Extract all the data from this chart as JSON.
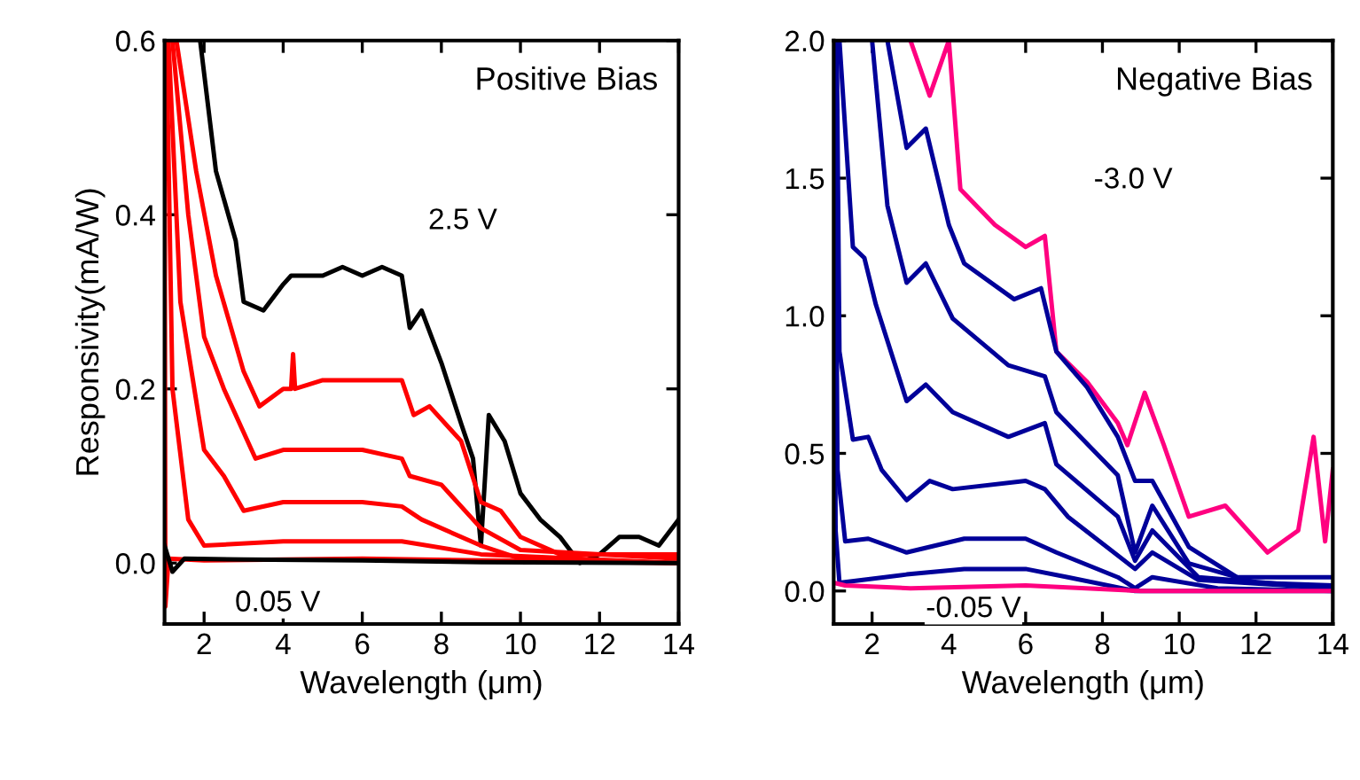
{
  "chart_data": [
    {
      "type": "line",
      "xlabel": "Wavelength (μm)",
      "ylabel": "Responsivity(mA/W)",
      "xlim": [
        1,
        14
      ],
      "ylim": [
        -0.07,
        0.6
      ],
      "xticks": [
        2,
        4,
        6,
        8,
        10,
        12,
        14
      ],
      "yticks": [
        {
          "value": 0,
          "label": "0.0"
        },
        {
          "value": 0.2,
          "label": "0.2"
        },
        {
          "value": 0.4,
          "label": "0.4"
        },
        {
          "value": 0.6,
          "label": "0.6"
        }
      ],
      "grid": false,
      "annotations": [
        "Positive Bias",
        "2.5 V",
        "0.05 V"
      ],
      "series": [
        {
          "color": "#000000",
          "x": [
            1.9,
            2.3,
            2.8,
            3.0,
            3.5,
            4.0,
            4.2,
            5.0,
            5.5,
            6.0,
            6.5,
            7.0,
            7.2,
            7.5,
            8.0,
            8.5,
            8.8,
            9.0,
            9.2,
            9.6,
            10.0,
            10.5,
            11.0,
            11.5,
            12.0,
            12.5,
            13.0,
            13.5,
            14.0
          ],
          "values": [
            0.6,
            0.45,
            0.37,
            0.3,
            0.29,
            0.32,
            0.33,
            0.33,
            0.34,
            0.33,
            0.34,
            0.33,
            0.27,
            0.29,
            0.23,
            0.16,
            0.12,
            0.02,
            0.17,
            0.14,
            0.08,
            0.05,
            0.03,
            0.0,
            0.01,
            0.03,
            0.03,
            0.02,
            0.05
          ]
        },
        {
          "color": "#ff0000",
          "x": [
            1.3,
            1.8,
            2.3,
            3.0,
            3.4,
            4.0,
            4.2,
            4.25,
            4.3,
            5.0,
            6.0,
            7.0,
            7.3,
            7.7,
            8.5,
            9.0,
            9.5,
            10.0,
            11.0,
            12.0,
            14.0
          ],
          "values": [
            0.6,
            0.45,
            0.33,
            0.22,
            0.18,
            0.2,
            0.2,
            0.24,
            0.2,
            0.21,
            0.21,
            0.21,
            0.17,
            0.18,
            0.14,
            0.07,
            0.06,
            0.03,
            0.01,
            0.01,
            0.01
          ]
        },
        {
          "color": "#ff0000",
          "x": [
            1.2,
            1.6,
            2.0,
            2.5,
            3.3,
            4.0,
            5.0,
            6.0,
            7.0,
            7.2,
            8.0,
            9.0,
            10.0,
            14.0
          ],
          "values": [
            0.6,
            0.4,
            0.26,
            0.2,
            0.12,
            0.13,
            0.13,
            0.13,
            0.12,
            0.1,
            0.09,
            0.04,
            0.015,
            0.005
          ]
        },
        {
          "color": "#ff0000",
          "x": [
            1.1,
            1.4,
            2.0,
            2.5,
            3.0,
            4.0,
            6.0,
            7.0,
            7.5,
            9.0,
            10.0,
            14.0
          ],
          "values": [
            0.6,
            0.3,
            0.13,
            0.1,
            0.06,
            0.07,
            0.07,
            0.065,
            0.05,
            0.02,
            0.005,
            0.0
          ]
        },
        {
          "color": "#ff0000",
          "x": [
            1.05,
            1.2,
            1.6,
            2.0,
            4.0,
            7.0,
            9.0,
            14.0
          ],
          "values": [
            0.6,
            0.2,
            0.05,
            0.02,
            0.025,
            0.025,
            0.01,
            0.0
          ]
        },
        {
          "color": "#ff0000",
          "x": [
            1.0,
            1.02,
            1.1,
            2.0,
            6.0,
            14.0
          ],
          "values": [
            0.6,
            -0.05,
            0.005,
            0.003,
            0.005,
            0.0
          ]
        },
        {
          "color": "#000000",
          "x": [
            1.0,
            1.2,
            1.5,
            3.0,
            6.0,
            9.0,
            14.0
          ],
          "values": [
            0.02,
            -0.01,
            0.005,
            0.004,
            0.003,
            0.001,
            0.0
          ]
        }
      ]
    },
    {
      "type": "line",
      "xlabel": "Wavelength (μm)",
      "xlim": [
        1,
        14
      ],
      "ylim": [
        -0.12,
        2.0
      ],
      "xticks": [
        2,
        4,
        6,
        8,
        10,
        12,
        14
      ],
      "yticks": [
        {
          "value": 0,
          "label": "0.0"
        },
        {
          "value": 0.5,
          "label": "0.5"
        },
        {
          "value": 1,
          "label": "1.0"
        },
        {
          "value": 1.5,
          "label": "1.5"
        },
        {
          "value": 2,
          "label": "2.0"
        }
      ],
      "grid": false,
      "annotations": [
        "Negative Bias",
        "-3.0 V",
        "-0.05 V"
      ],
      "series": [
        {
          "color": "#ff0080",
          "x": [
            3.0,
            3.5,
            4.0,
            4.3,
            5.2,
            6.0,
            6.5,
            6.8,
            7.6,
            8.4,
            8.65,
            9.1,
            9.6,
            10.25,
            11.2,
            12.3,
            13.1,
            13.5,
            13.8,
            14.0
          ],
          "values": [
            2.0,
            1.8,
            2.0,
            1.46,
            1.33,
            1.25,
            1.29,
            0.87,
            0.76,
            0.61,
            0.53,
            0.72,
            0.53,
            0.27,
            0.31,
            0.14,
            0.22,
            0.56,
            0.18,
            0.44
          ]
        },
        {
          "color": "#000099",
          "x": [
            2.4,
            2.9,
            3.4,
            4.0,
            4.4,
            5.7,
            6.4,
            6.8,
            7.6,
            8.4,
            8.85,
            9.3,
            10.25,
            11.5,
            14.0
          ],
          "values": [
            2.0,
            1.61,
            1.68,
            1.33,
            1.19,
            1.06,
            1.1,
            0.87,
            0.74,
            0.56,
            0.4,
            0.4,
            0.16,
            0.05,
            0.05
          ]
        },
        {
          "color": "#000099",
          "x": [
            2.0,
            2.4,
            2.9,
            3.4,
            4.1,
            5.55,
            6.5,
            6.8,
            8.4,
            8.85,
            9.3,
            10.25,
            12.0,
            14.0
          ],
          "values": [
            2.0,
            1.4,
            1.12,
            1.19,
            0.99,
            0.82,
            0.78,
            0.65,
            0.42,
            0.14,
            0.31,
            0.1,
            0.03,
            0.02
          ]
        },
        {
          "color": "#000099",
          "x": [
            1.15,
            1.5,
            1.8,
            2.1,
            2.9,
            3.4,
            4.1,
            5.55,
            6.5,
            6.8,
            8.4,
            8.85,
            9.3,
            10.5,
            14.0
          ],
          "values": [
            2.0,
            1.25,
            1.21,
            1.04,
            0.69,
            0.75,
            0.65,
            0.56,
            0.61,
            0.46,
            0.27,
            0.11,
            0.22,
            0.05,
            0.01
          ]
        },
        {
          "color": "#000099",
          "x": [
            1.08,
            1.15,
            1.5,
            1.9,
            2.25,
            2.9,
            3.5,
            4.1,
            6.0,
            6.5,
            7.1,
            8.85,
            9.3,
            10.5,
            14.0
          ],
          "values": [
            2.0,
            0.87,
            0.55,
            0.56,
            0.44,
            0.33,
            0.4,
            0.37,
            0.4,
            0.37,
            0.27,
            0.08,
            0.14,
            0.04,
            0.01
          ]
        },
        {
          "color": "#000099",
          "x": [
            1.03,
            1.1,
            1.3,
            1.9,
            2.9,
            4.4,
            6.0,
            6.8,
            8.4,
            8.85,
            9.3,
            11.0,
            14.0
          ],
          "values": [
            2.0,
            0.44,
            0.18,
            0.19,
            0.14,
            0.19,
            0.19,
            0.14,
            0.05,
            0.01,
            0.05,
            0.01,
            0.0
          ]
        },
        {
          "color": "#000099",
          "x": [
            1.0,
            1.05,
            1.15,
            2.9,
            4.4,
            6.0,
            7.1,
            8.85,
            14.0
          ],
          "values": [
            2.0,
            0.22,
            0.03,
            0.06,
            0.08,
            0.08,
            0.05,
            0.0,
            0.0
          ]
        },
        {
          "color": "#ff0080",
          "x": [
            1.0,
            1.3,
            3.0,
            6.0,
            9.0,
            14.0
          ],
          "values": [
            0.03,
            0.02,
            0.01,
            0.02,
            0.0,
            0.0
          ]
        }
      ]
    }
  ]
}
